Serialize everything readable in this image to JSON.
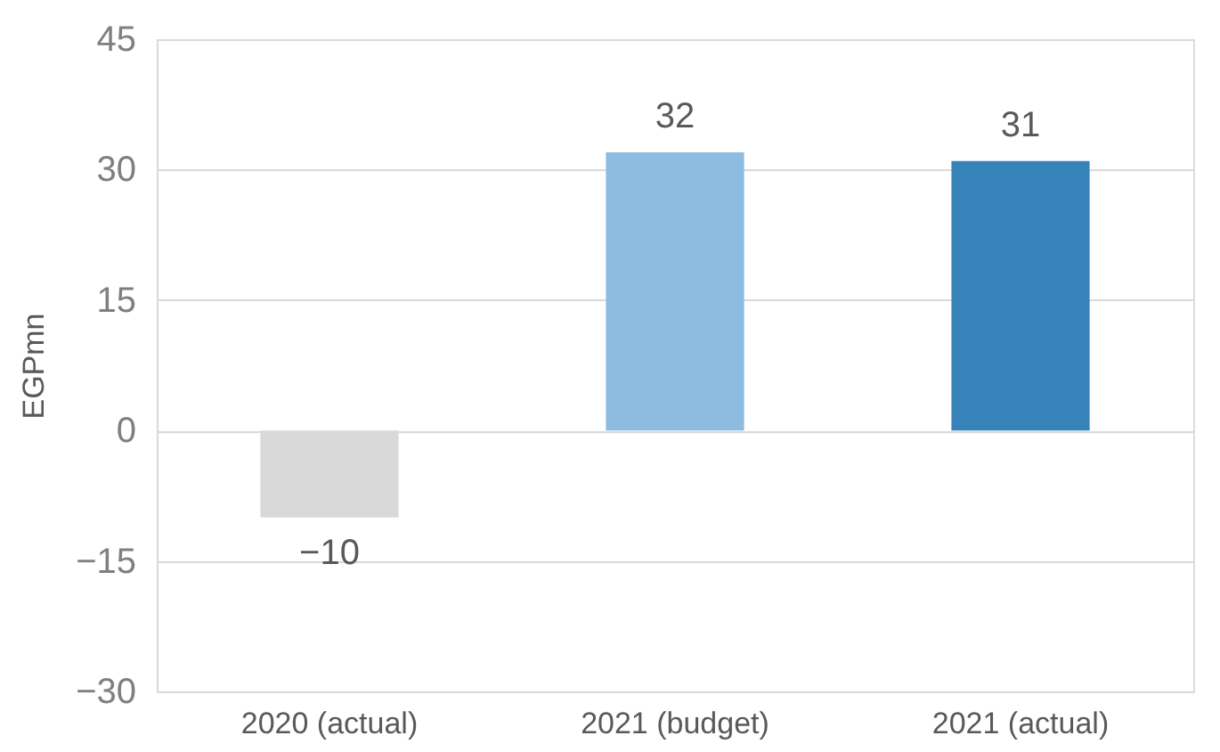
{
  "chart_data": {
    "type": "bar",
    "categories": [
      "2020 (actual)",
      "2021 (budget)",
      "2021 (actual)"
    ],
    "values": [
      -10,
      32,
      31
    ],
    "colors": [
      "#d9d9d9",
      "#8dbce0",
      "#3683b9"
    ],
    "ylabel": "EGPmn",
    "ylim": [
      -30,
      45
    ],
    "yticks": [
      -30,
      -15,
      0,
      15,
      30,
      45
    ],
    "grid": "y",
    "data_labels": true
  }
}
